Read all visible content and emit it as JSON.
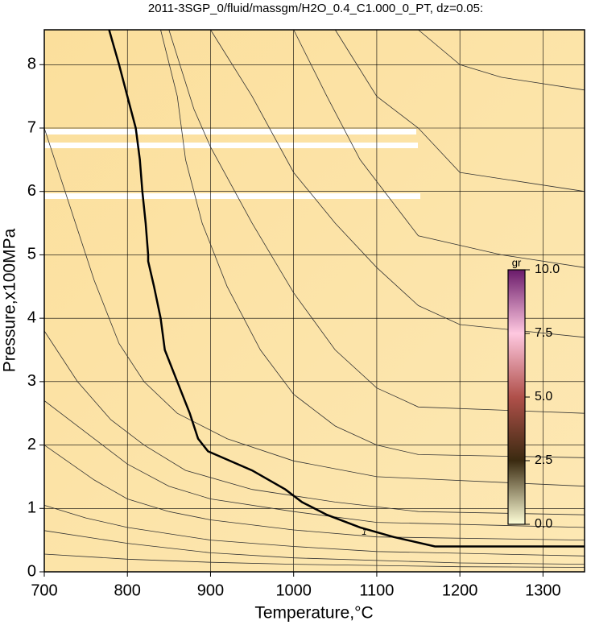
{
  "chart_data": {
    "type": "contour",
    "title": "2011-3SGP_0/fluid/massgm/H2O_0.4_C1.000_0_PT, dz=0.05:",
    "x_label": "Temperature,°C",
    "y_label": "Pressure,x100MPa",
    "xlim": [
      700,
      1350
    ],
    "ylim": [
      0,
      8.55
    ],
    "xticks": [
      700,
      800,
      900,
      1000,
      1100,
      1200,
      1300
    ],
    "yticks": [
      0,
      1,
      2,
      3,
      4,
      5,
      6,
      7,
      8
    ],
    "grid": true,
    "main_contour": {
      "level": 1,
      "label_x": 1085,
      "label_y": 0.62,
      "x": [
        778,
        790,
        800,
        810,
        815,
        818,
        822,
        825,
        825,
        832,
        840,
        845,
        860,
        875,
        885,
        897,
        950,
        990,
        1010,
        1040,
        1080,
        1120,
        1170,
        1350
      ],
      "y": [
        8.55,
        8.0,
        7.5,
        7.0,
        6.5,
        6.0,
        5.5,
        5.0,
        4.9,
        4.5,
        4.0,
        3.5,
        3.0,
        2.5,
        2.1,
        1.9,
        1.6,
        1.3,
        1.1,
        0.9,
        0.7,
        0.55,
        0.4,
        0.4
      ]
    },
    "contours": [
      {
        "x": [
          700,
          800,
          900,
          1000,
          1200,
          1350
        ],
        "y": [
          0.28,
          0.2,
          0.15,
          0.12,
          0.08,
          0.07
        ]
      },
      {
        "x": [
          700,
          800,
          900,
          1000,
          1200,
          1350
        ],
        "y": [
          0.65,
          0.45,
          0.3,
          0.22,
          0.14,
          0.12
        ]
      },
      {
        "x": [
          700,
          750,
          800,
          900,
          1000,
          1100,
          1350
        ],
        "y": [
          1.05,
          0.85,
          0.7,
          0.5,
          0.4,
          0.32,
          0.25
        ]
      },
      {
        "x": [
          700,
          760,
          800,
          850,
          900,
          1000,
          1100,
          1350
        ],
        "y": [
          2.0,
          1.45,
          1.15,
          0.95,
          0.82,
          0.66,
          0.55,
          0.5
        ]
      },
      {
        "x": [
          700,
          760,
          800,
          850,
          900,
          1000,
          1100,
          1350
        ],
        "y": [
          2.7,
          2.1,
          1.7,
          1.35,
          1.15,
          0.95,
          0.78,
          0.7
        ]
      },
      {
        "x": [
          700,
          740,
          780,
          820,
          870,
          950,
          1050,
          1150,
          1350
        ],
        "y": [
          3.8,
          3.0,
          2.4,
          2.0,
          1.6,
          1.3,
          1.1,
          0.95,
          0.9
        ]
      },
      {
        "x": [
          700,
          730,
          760,
          790,
          820,
          860,
          920,
          1000,
          1100,
          1350
        ],
        "y": [
          7.0,
          5.8,
          4.6,
          3.6,
          3.0,
          2.5,
          2.1,
          1.75,
          1.5,
          1.35
        ]
      },
      {
        "x": [
          840,
          860,
          870,
          890,
          920,
          960,
          1000,
          1050,
          1100,
          1150,
          1350
        ],
        "y": [
          8.55,
          7.5,
          6.5,
          5.5,
          4.5,
          3.5,
          2.8,
          2.3,
          2.0,
          1.85,
          1.8
        ]
      },
      {
        "x": [
          850,
          880,
          900,
          950,
          1000,
          1050,
          1100,
          1150,
          1350
        ],
        "y": [
          8.55,
          7.3,
          6.7,
          5.5,
          4.4,
          3.5,
          2.9,
          2.6,
          2.5
        ]
      },
      {
        "x": [
          900,
          950,
          1000,
          1050,
          1100,
          1150,
          1200,
          1350
        ],
        "y": [
          8.55,
          7.5,
          6.3,
          5.5,
          4.8,
          4.2,
          3.9,
          3.7
        ]
      },
      {
        "x": [
          1000,
          1040,
          1080,
          1150,
          1250,
          1350
        ],
        "y": [
          8.55,
          7.5,
          6.5,
          5.3,
          5.0,
          4.8
        ]
      },
      {
        "x": [
          1050,
          1100,
          1150,
          1200,
          1350
        ],
        "y": [
          8.55,
          7.5,
          7.0,
          6.3,
          6.0
        ]
      },
      {
        "x": [
          1150,
          1200,
          1250,
          1350
        ],
        "y": [
          8.55,
          8.0,
          7.8,
          7.6
        ]
      }
    ],
    "colorbar": {
      "label": "gr",
      "lim": [
        0,
        10
      ],
      "ticks": [
        {
          "value": 0,
          "label": "0.0"
        },
        {
          "value": 2.5,
          "label": "2.5"
        },
        {
          "value": 5,
          "label": "5.0"
        },
        {
          "value": 7.5,
          "label": "7.5"
        },
        {
          "value": 10,
          "label": "10.0"
        }
      ],
      "colors": [
        "#ffffd8",
        "#3a2a10",
        "#b0504a",
        "#ffc8e0",
        "#6a1a6a"
      ]
    }
  }
}
